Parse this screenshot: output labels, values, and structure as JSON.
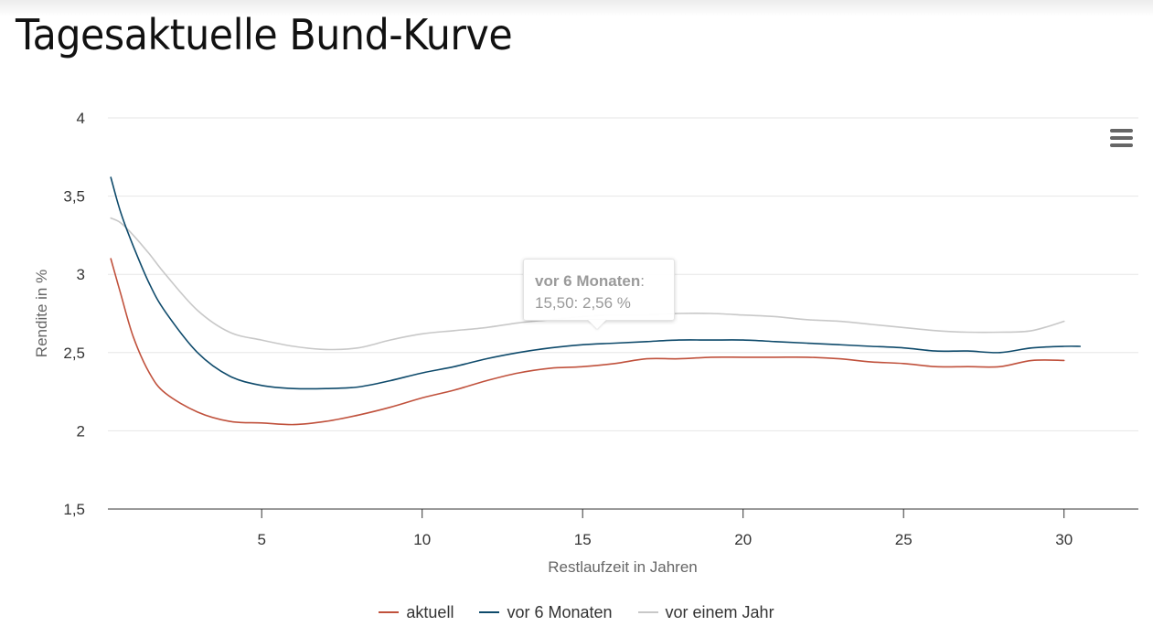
{
  "title": "Tagesaktuelle Bund-Kurve",
  "menu": {
    "icon": "hamburger-menu-icon"
  },
  "tooltip": {
    "series": "vor 6 Monaten",
    "separator": ":",
    "value_text": "15,50: 2,56 %"
  },
  "chart_data": {
    "type": "line",
    "xlabel": "Restlaufzeit in Jahren",
    "ylabel": "Rendite in %",
    "xlim": [
      0,
      32
    ],
    "ylim": [
      1.5,
      4
    ],
    "x_ticks": [
      5,
      10,
      15,
      20,
      25,
      30
    ],
    "x_tick_labels": [
      "5",
      "10",
      "15",
      "20",
      "25",
      "30"
    ],
    "y_ticks": [
      1.5,
      2,
      2.5,
      3,
      3.5,
      4
    ],
    "y_tick_labels": [
      "1,5",
      "2",
      "2,5",
      "3",
      "3,5",
      "4"
    ],
    "grid": true,
    "legend_position": "bottom",
    "series": [
      {
        "name": "aktuell",
        "color": "#c0513c",
        "x": [
          0.3,
          0.6,
          1,
          1.5,
          2,
          3,
          4,
          5,
          6,
          7,
          8,
          9,
          10,
          11,
          12,
          13,
          14,
          15,
          16,
          17,
          18,
          19,
          20,
          21,
          22,
          23,
          24,
          25,
          26,
          27,
          28,
          29,
          30
        ],
        "y": [
          3.1,
          2.88,
          2.6,
          2.37,
          2.24,
          2.12,
          2.06,
          2.05,
          2.04,
          2.06,
          2.1,
          2.15,
          2.21,
          2.26,
          2.32,
          2.37,
          2.4,
          2.41,
          2.43,
          2.46,
          2.46,
          2.47,
          2.47,
          2.47,
          2.47,
          2.46,
          2.44,
          2.43,
          2.41,
          2.41,
          2.41,
          2.45,
          2.45
        ]
      },
      {
        "name": "vor 6 Monaten",
        "color": "#0e4a6b",
        "x": [
          0.3,
          0.6,
          1,
          1.5,
          2,
          3,
          4,
          5,
          6,
          7,
          8,
          9,
          10,
          11,
          12,
          13,
          14,
          15,
          16,
          17,
          18,
          19,
          20,
          21,
          22,
          23,
          24,
          25,
          26,
          27,
          28,
          29,
          30,
          30.5
        ],
        "y": [
          3.62,
          3.4,
          3.18,
          2.94,
          2.76,
          2.5,
          2.35,
          2.29,
          2.27,
          2.27,
          2.28,
          2.32,
          2.37,
          2.41,
          2.46,
          2.5,
          2.53,
          2.55,
          2.56,
          2.57,
          2.58,
          2.58,
          2.58,
          2.57,
          2.56,
          2.55,
          2.54,
          2.53,
          2.51,
          2.51,
          2.5,
          2.53,
          2.54,
          2.54
        ]
      },
      {
        "name": "vor einem Jahr",
        "color": "#c8c8c8",
        "x": [
          0.3,
          0.6,
          1,
          1.5,
          2,
          3,
          4,
          5,
          6,
          7,
          8,
          9,
          10,
          11,
          12,
          13,
          14,
          15,
          16,
          17,
          18,
          19,
          20,
          21,
          22,
          23,
          24,
          25,
          26,
          27,
          28,
          29,
          30
        ],
        "y": [
          3.36,
          3.33,
          3.25,
          3.13,
          3.0,
          2.77,
          2.63,
          2.58,
          2.54,
          2.52,
          2.53,
          2.58,
          2.62,
          2.64,
          2.66,
          2.69,
          2.71,
          2.73,
          2.74,
          2.74,
          2.75,
          2.75,
          2.74,
          2.73,
          2.71,
          2.7,
          2.68,
          2.66,
          2.64,
          2.63,
          2.63,
          2.64,
          2.7
        ]
      }
    ]
  }
}
